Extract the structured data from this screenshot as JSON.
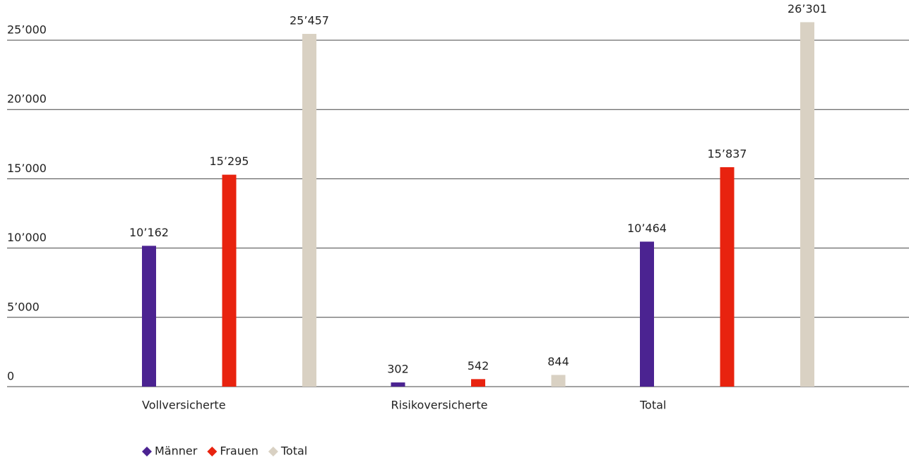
{
  "chart_data": {
    "type": "bar",
    "categories": [
      "Vollversicherte",
      "Risikoversicherte",
      "Total"
    ],
    "series": [
      {
        "name": "Männer",
        "color": "#4b2391",
        "values": [
          10162,
          302,
          10464
        ],
        "value_labels": [
          "10’162",
          "302",
          "10’464"
        ]
      },
      {
        "name": "Frauen",
        "color": "#e8230f",
        "values": [
          15295,
          542,
          15837
        ],
        "value_labels": [
          "15’295",
          "542",
          "15’837"
        ]
      },
      {
        "name": "Total",
        "color": "#d9d1c3",
        "values": [
          25457,
          844,
          26301
        ],
        "value_labels": [
          "25’457",
          "844",
          "26’301"
        ]
      }
    ],
    "ylim": [
      0,
      25000
    ],
    "yticks": [
      0,
      {
        "value": 5000,
        "label": "5’000"
      },
      {
        "value": 10000,
        "label": "10’000"
      },
      {
        "value": 15000,
        "label": "15’000"
      },
      {
        "value": 20000,
        "label": "20’000"
      },
      {
        "value": 25000,
        "label": "25’000"
      }
    ],
    "grid": true,
    "legend": "bottom"
  }
}
